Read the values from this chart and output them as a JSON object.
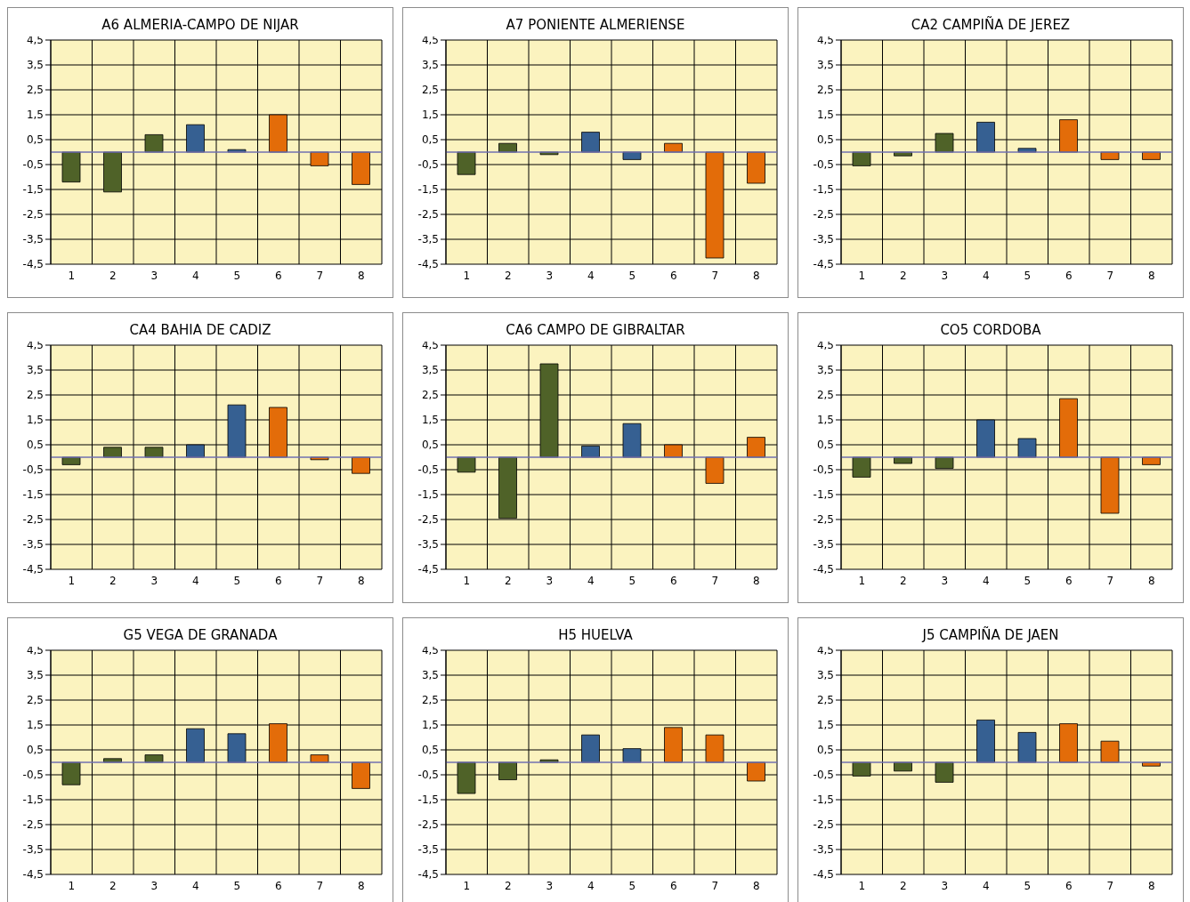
{
  "chart_data": [
    {
      "type": "bar",
      "title": "A6 ALMERIA-CAMPO DE NIJAR",
      "categories": [
        "1",
        "2",
        "3",
        "4",
        "5",
        "6",
        "7",
        "8"
      ],
      "values": [
        -1.2,
        -1.6,
        0.7,
        1.1,
        0.1,
        1.5,
        -0.55,
        -1.3
      ],
      "ref_lines": [
        {
          "axis": "y",
          "value": 0,
          "color": "#7070b0"
        }
      ],
      "colors": [
        "#4f6228",
        "#4f6228",
        "#4f6228",
        "#366092",
        "#366092",
        "#e36c09",
        "#e36c09",
        "#e36c09"
      ],
      "ylim": [
        -4.5,
        4.5
      ],
      "yticks": [
        {
          "value": -4.5,
          "label": "-4,5"
        },
        {
          "value": -3.5,
          "label": "-3,5"
        },
        {
          "value": -2.5,
          "label": "-2,5"
        },
        {
          "value": -1.5,
          "label": "-1,5"
        },
        {
          "value": -0.5,
          "label": "-0,5"
        },
        {
          "value": 0.5,
          "label": "0,5"
        },
        {
          "value": 1.5,
          "label": "1,5"
        },
        {
          "value": 2.5,
          "label": "2,5"
        },
        {
          "value": 3.5,
          "label": "3,5"
        },
        {
          "value": 4.5,
          "label": "4,5"
        }
      ],
      "grid": true,
      "legend": false
    },
    {
      "type": "bar",
      "title": "A7 PONIENTE ALMERIENSE",
      "categories": [
        "1",
        "2",
        "3",
        "4",
        "5",
        "6",
        "7",
        "8"
      ],
      "values": [
        -0.9,
        0.35,
        -0.1,
        0.8,
        -0.3,
        0.35,
        -4.25,
        -1.25
      ],
      "ref_lines": [
        {
          "axis": "y",
          "value": 0,
          "color": "#7070b0"
        }
      ],
      "colors": [
        "#4f6228",
        "#4f6228",
        "#4f6228",
        "#366092",
        "#366092",
        "#e36c09",
        "#e36c09",
        "#e36c09"
      ],
      "ylim": [
        -4.5,
        4.5
      ],
      "yticks": [
        {
          "value": -4.5,
          "label": "-4,5"
        },
        {
          "value": -3.5,
          "label": "-3,5"
        },
        {
          "value": -2.5,
          "label": "-2,5"
        },
        {
          "value": -1.5,
          "label": "-1,5"
        },
        {
          "value": -0.5,
          "label": "-0,5"
        },
        {
          "value": 0.5,
          "label": "0,5"
        },
        {
          "value": 1.5,
          "label": "1,5"
        },
        {
          "value": 2.5,
          "label": "2,5"
        },
        {
          "value": 3.5,
          "label": "3,5"
        },
        {
          "value": 4.5,
          "label": "4,5"
        }
      ],
      "grid": true,
      "legend": false
    },
    {
      "type": "bar",
      "title": "CA2 CAMPIÑA DE JEREZ",
      "categories": [
        "1",
        "2",
        "3",
        "4",
        "5",
        "6",
        "7",
        "8"
      ],
      "values": [
        -0.55,
        -0.15,
        0.75,
        1.2,
        0.15,
        1.3,
        -0.3,
        -0.3
      ],
      "ref_lines": [
        {
          "axis": "y",
          "value": 0,
          "color": "#7070b0"
        }
      ],
      "colors": [
        "#4f6228",
        "#4f6228",
        "#4f6228",
        "#366092",
        "#366092",
        "#e36c09",
        "#e36c09",
        "#e36c09"
      ],
      "ylim": [
        -4.5,
        4.5
      ],
      "yticks": [
        {
          "value": -4.5,
          "label": "-4,5"
        },
        {
          "value": -3.5,
          "label": "-3,5"
        },
        {
          "value": -2.5,
          "label": "-2,5"
        },
        {
          "value": -1.5,
          "label": "-1,5"
        },
        {
          "value": -0.5,
          "label": "-0,5"
        },
        {
          "value": 0.5,
          "label": "0,5"
        },
        {
          "value": 1.5,
          "label": "1,5"
        },
        {
          "value": 2.5,
          "label": "2,5"
        },
        {
          "value": 3.5,
          "label": "3,5"
        },
        {
          "value": 4.5,
          "label": "4,5"
        }
      ],
      "grid": true,
      "legend": false
    },
    {
      "type": "bar",
      "title": "CA4 BAHIA DE CADIZ",
      "categories": [
        "1",
        "2",
        "3",
        "4",
        "5",
        "6",
        "7",
        "8"
      ],
      "values": [
        -0.3,
        0.4,
        0.4,
        0.5,
        2.1,
        2.0,
        -0.1,
        -0.65
      ],
      "ref_lines": [
        {
          "axis": "y",
          "value": 0,
          "color": "#7070b0"
        }
      ],
      "colors": [
        "#4f6228",
        "#4f6228",
        "#4f6228",
        "#366092",
        "#366092",
        "#e36c09",
        "#e36c09",
        "#e36c09"
      ],
      "ylim": [
        -4.5,
        4.5
      ],
      "yticks": [
        {
          "value": -4.5,
          "label": "-4,5"
        },
        {
          "value": -3.5,
          "label": "-3,5"
        },
        {
          "value": -2.5,
          "label": "-2,5"
        },
        {
          "value": -1.5,
          "label": "-1,5"
        },
        {
          "value": -0.5,
          "label": "-0,5"
        },
        {
          "value": 0.5,
          "label": "0,5"
        },
        {
          "value": 1.5,
          "label": "1,5"
        },
        {
          "value": 2.5,
          "label": "2,5"
        },
        {
          "value": 3.5,
          "label": "3,5"
        },
        {
          "value": 4.5,
          "label": "4,5"
        }
      ],
      "grid": true,
      "legend": false
    },
    {
      "type": "bar",
      "title": "CA6 CAMPO DE GIBRALTAR",
      "categories": [
        "1",
        "2",
        "3",
        "4",
        "5",
        "6",
        "7",
        "8"
      ],
      "values": [
        -0.6,
        -2.45,
        3.75,
        0.45,
        1.35,
        0.5,
        -1.05,
        0.8
      ],
      "ref_lines": [
        {
          "axis": "y",
          "value": 0,
          "color": "#7070b0"
        }
      ],
      "colors": [
        "#4f6228",
        "#4f6228",
        "#4f6228",
        "#366092",
        "#366092",
        "#e36c09",
        "#e36c09",
        "#e36c09"
      ],
      "ylim": [
        -4.5,
        4.5
      ],
      "yticks": [
        {
          "value": -4.5,
          "label": "-4,5"
        },
        {
          "value": -3.5,
          "label": "-3,5"
        },
        {
          "value": -2.5,
          "label": "-2,5"
        },
        {
          "value": -1.5,
          "label": "-1,5"
        },
        {
          "value": -0.5,
          "label": "-0,5"
        },
        {
          "value": 0.5,
          "label": "0,5"
        },
        {
          "value": 1.5,
          "label": "1,5"
        },
        {
          "value": 2.5,
          "label": "2,5"
        },
        {
          "value": 3.5,
          "label": "3,5"
        },
        {
          "value": 4.5,
          "label": "4,5"
        }
      ],
      "grid": true,
      "legend": false
    },
    {
      "type": "bar",
      "title": "CO5 CORDOBA",
      "categories": [
        "1",
        "2",
        "3",
        "4",
        "5",
        "6",
        "7",
        "8"
      ],
      "values": [
        -0.8,
        -0.25,
        -0.45,
        1.5,
        0.75,
        2.35,
        -2.25,
        -0.3
      ],
      "ref_lines": [
        {
          "axis": "y",
          "value": 0,
          "color": "#7070b0"
        }
      ],
      "colors": [
        "#4f6228",
        "#4f6228",
        "#4f6228",
        "#366092",
        "#366092",
        "#e36c09",
        "#e36c09",
        "#e36c09"
      ],
      "ylim": [
        -4.5,
        4.5
      ],
      "yticks": [
        {
          "value": -4.5,
          "label": "-4,5"
        },
        {
          "value": -3.5,
          "label": "-3,5"
        },
        {
          "value": -2.5,
          "label": "-2,5"
        },
        {
          "value": -1.5,
          "label": "-1,5"
        },
        {
          "value": -0.5,
          "label": "-0,5"
        },
        {
          "value": 0.5,
          "label": "0,5"
        },
        {
          "value": 1.5,
          "label": "1,5"
        },
        {
          "value": 2.5,
          "label": "2,5"
        },
        {
          "value": 3.5,
          "label": "3,5"
        },
        {
          "value": 4.5,
          "label": "4,5"
        }
      ],
      "grid": true,
      "legend": false
    },
    {
      "type": "bar",
      "title": "G5 VEGA DE GRANADA",
      "categories": [
        "1",
        "2",
        "3",
        "4",
        "5",
        "6",
        "7",
        "8"
      ],
      "values": [
        -0.9,
        0.15,
        0.3,
        1.35,
        1.15,
        1.55,
        0.3,
        -1.05
      ],
      "ref_lines": [
        {
          "axis": "y",
          "value": 0,
          "color": "#7070b0"
        }
      ],
      "colors": [
        "#4f6228",
        "#4f6228",
        "#4f6228",
        "#366092",
        "#366092",
        "#e36c09",
        "#e36c09",
        "#e36c09"
      ],
      "ylim": [
        -4.5,
        4.5
      ],
      "yticks": [
        {
          "value": -4.5,
          "label": "-4,5"
        },
        {
          "value": -3.5,
          "label": "-3,5"
        },
        {
          "value": -2.5,
          "label": "-2,5"
        },
        {
          "value": -1.5,
          "label": "-1,5"
        },
        {
          "value": -0.5,
          "label": "-0,5"
        },
        {
          "value": 0.5,
          "label": "0,5"
        },
        {
          "value": 1.5,
          "label": "1,5"
        },
        {
          "value": 2.5,
          "label": "2,5"
        },
        {
          "value": 3.5,
          "label": "3,5"
        },
        {
          "value": 4.5,
          "label": "4,5"
        }
      ],
      "grid": true,
      "legend": false
    },
    {
      "type": "bar",
      "title": "H5 HUELVA",
      "categories": [
        "1",
        "2",
        "3",
        "4",
        "5",
        "6",
        "7",
        "8"
      ],
      "values": [
        -1.25,
        -0.7,
        0.1,
        1.1,
        0.55,
        1.4,
        1.1,
        -0.75
      ],
      "ref_lines": [
        {
          "axis": "y",
          "value": 0,
          "color": "#7070b0"
        }
      ],
      "colors": [
        "#4f6228",
        "#4f6228",
        "#4f6228",
        "#366092",
        "#366092",
        "#e36c09",
        "#e36c09",
        "#e36c09"
      ],
      "ylim": [
        -4.5,
        4.5
      ],
      "yticks": [
        {
          "value": -4.5,
          "label": "-4,5"
        },
        {
          "value": -3.5,
          "label": "-3,5"
        },
        {
          "value": -2.5,
          "label": "-2,5"
        },
        {
          "value": -1.5,
          "label": "-1,5"
        },
        {
          "value": -0.5,
          "label": "-0,5"
        },
        {
          "value": 0.5,
          "label": "0,5"
        },
        {
          "value": 1.5,
          "label": "1,5"
        },
        {
          "value": 2.5,
          "label": "2,5"
        },
        {
          "value": 3.5,
          "label": "3,5"
        },
        {
          "value": 4.5,
          "label": "4,5"
        }
      ],
      "grid": true,
      "legend": false
    },
    {
      "type": "bar",
      "title": "J5 CAMPIÑA DE JAEN",
      "categories": [
        "1",
        "2",
        "3",
        "4",
        "5",
        "6",
        "7",
        "8"
      ],
      "values": [
        -0.55,
        -0.35,
        -0.8,
        1.7,
        1.2,
        1.55,
        0.85,
        -0.15
      ],
      "ref_lines": [
        {
          "axis": "y",
          "value": 0,
          "color": "#7070b0"
        }
      ],
      "colors": [
        "#4f6228",
        "#4f6228",
        "#4f6228",
        "#366092",
        "#366092",
        "#e36c09",
        "#e36c09",
        "#e36c09"
      ],
      "ylim": [
        -4.5,
        4.5
      ],
      "yticks": [
        {
          "value": -4.5,
          "label": "-4,5"
        },
        {
          "value": -3.5,
          "label": "-3,5"
        },
        {
          "value": -2.5,
          "label": "-2,5"
        },
        {
          "value": -1.5,
          "label": "-1,5"
        },
        {
          "value": -0.5,
          "label": "-0,5"
        },
        {
          "value": 0.5,
          "label": "0,5"
        },
        {
          "value": 1.5,
          "label": "1,5"
        },
        {
          "value": 2.5,
          "label": "2,5"
        },
        {
          "value": 3.5,
          "label": "3,5"
        },
        {
          "value": 4.5,
          "label": "4,5"
        }
      ],
      "grid": true,
      "legend": false
    }
  ]
}
